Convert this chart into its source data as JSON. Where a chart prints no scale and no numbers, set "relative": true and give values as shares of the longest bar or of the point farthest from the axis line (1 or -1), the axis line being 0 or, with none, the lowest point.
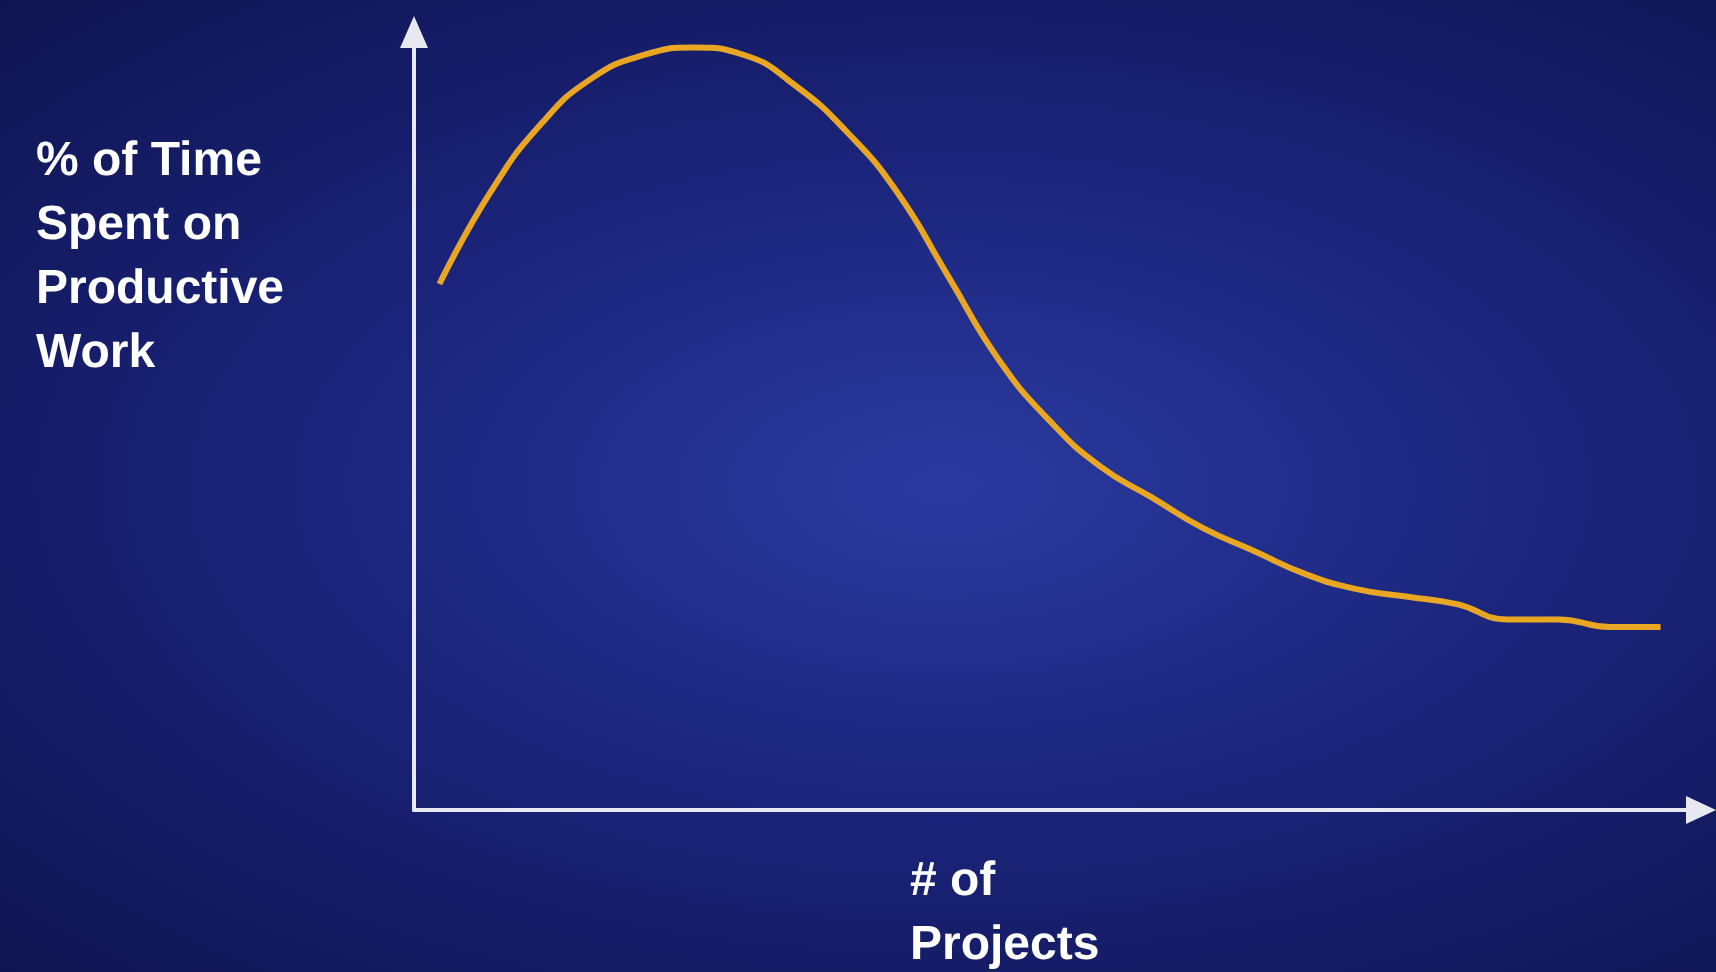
{
  "chart_data": {
    "type": "line",
    "relative": true,
    "xlabel": "# of\nProjects",
    "ylabel": "% of Time\nSpent on\nProductive\nWork",
    "categories": [
      null,
      null,
      null,
      null,
      null,
      null,
      null,
      null,
      null,
      null,
      null,
      null,
      null,
      null,
      null,
      null,
      null,
      null,
      null,
      null,
      null,
      null,
      null,
      null,
      null
    ],
    "series": [
      {
        "color": "#e8a623",
        "values": [
          0.69,
          0.81,
          0.9,
          0.96,
          0.99,
          1,
          0.99,
          0.95,
          0.89,
          0.81,
          0.7,
          0.59,
          0.51,
          0.45,
          0.41,
          0.37,
          0.34,
          0.31,
          0.29,
          0.28,
          0.27,
          0.25,
          0.25,
          0.24,
          0.24
        ]
      }
    ],
    "grid": false,
    "marker": "none"
  }
}
